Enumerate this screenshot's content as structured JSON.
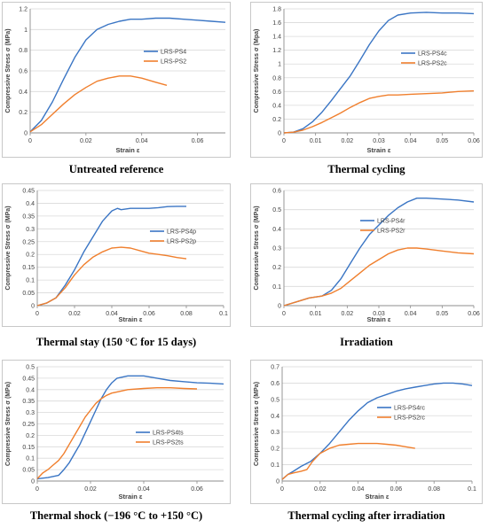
{
  "colors": {
    "blue": "#3a75c4",
    "orange": "#f07f2d",
    "grid": "#d9d9d9",
    "axis": "#8c8c8c",
    "border": "#c8c8c8"
  },
  "captions": [
    "Untreated reference",
    "Thermal cycling",
    "Thermal stay (150 °C for 15 days)",
    "Irradiation",
    "Thermal shock (−196 °C to +150 °C)",
    "Thermal cycling after irradiation"
  ],
  "chart_data": [
    {
      "type": "line",
      "xlabel": "Strain ε",
      "ylabel": "Compressive Stress σ (MPa)",
      "xlim": [
        0,
        0.07
      ],
      "ylim": [
        0,
        1.2
      ],
      "xticks": [
        0,
        0.02,
        0.04,
        0.06
      ],
      "xtick_labels": [
        "0",
        "0.02",
        "0.04",
        "0.06"
      ],
      "yticks": [
        0,
        0.2,
        0.4,
        0.6,
        0.8,
        1,
        1.2
      ],
      "ytick_labels": [
        "0",
        "0.2",
        "0.4",
        "0.6",
        "0.8",
        "1",
        "1.2"
      ],
      "legend": "right",
      "series": [
        {
          "name": "LRS-PS4",
          "color": "blue",
          "x": [
            0,
            0.004,
            0.008,
            0.012,
            0.016,
            0.02,
            0.024,
            0.028,
            0.032,
            0.036,
            0.04,
            0.045,
            0.05,
            0.055,
            0.06,
            0.065,
            0.07
          ],
          "y": [
            0.01,
            0.12,
            0.3,
            0.52,
            0.73,
            0.9,
            1.0,
            1.05,
            1.08,
            1.1,
            1.1,
            1.11,
            1.11,
            1.1,
            1.09,
            1.08,
            1.07
          ]
        },
        {
          "name": "LRS-PS2",
          "color": "orange",
          "x": [
            0,
            0.004,
            0.008,
            0.012,
            0.016,
            0.02,
            0.024,
            0.028,
            0.032,
            0.036,
            0.04,
            0.045,
            0.049
          ],
          "y": [
            0.01,
            0.08,
            0.18,
            0.28,
            0.37,
            0.44,
            0.5,
            0.53,
            0.55,
            0.55,
            0.53,
            0.49,
            0.46
          ]
        }
      ]
    },
    {
      "type": "line",
      "xlabel": "Strain ε",
      "ylabel": "Compressive Stress σ (Mpa)",
      "xlim": [
        0,
        0.06
      ],
      "ylim": [
        0,
        1.8
      ],
      "xticks": [
        0,
        0.01,
        0.02,
        0.03,
        0.04,
        0.05,
        0.06
      ],
      "xtick_labels": [
        "0",
        "0.01",
        "0.02",
        "0.03",
        "0.04",
        "0.05",
        "0.06"
      ],
      "yticks": [
        0,
        0.2,
        0.4,
        0.6,
        0.8,
        1,
        1.2,
        1.4,
        1.6,
        1.8
      ],
      "ytick_labels": [
        "0",
        "0.2",
        "0.4",
        "0.6",
        "0.8",
        "1",
        "1.2",
        "1.4",
        "1.6",
        "1.8"
      ],
      "legend": "right",
      "series": [
        {
          "name": "LRS-PS4c",
          "color": "blue",
          "x": [
            0,
            0.003,
            0.006,
            0.009,
            0.012,
            0.015,
            0.018,
            0.021,
            0.024,
            0.027,
            0.03,
            0.033,
            0.036,
            0.04,
            0.045,
            0.05,
            0.055,
            0.06
          ],
          "y": [
            0,
            0.01,
            0.06,
            0.16,
            0.3,
            0.47,
            0.65,
            0.83,
            1.05,
            1.28,
            1.48,
            1.63,
            1.71,
            1.74,
            1.75,
            1.74,
            1.74,
            1.73
          ]
        },
        {
          "name": "LRS-PS2c",
          "color": "orange",
          "x": [
            0,
            0.003,
            0.006,
            0.009,
            0.012,
            0.015,
            0.018,
            0.021,
            0.024,
            0.027,
            0.03,
            0.033,
            0.036,
            0.04,
            0.045,
            0.05,
            0.055,
            0.06
          ],
          "y": [
            0,
            0.01,
            0.04,
            0.09,
            0.15,
            0.22,
            0.29,
            0.37,
            0.44,
            0.5,
            0.53,
            0.55,
            0.55,
            0.56,
            0.57,
            0.58,
            0.6,
            0.61
          ]
        }
      ]
    },
    {
      "type": "line",
      "xlabel": "Strain ε",
      "ylabel": "Compressive Stress σ (MPa)",
      "xlim": [
        0,
        0.1
      ],
      "ylim": [
        0,
        0.45
      ],
      "xticks": [
        0,
        0.02,
        0.04,
        0.06,
        0.08,
        0.1
      ],
      "xtick_labels": [
        "0",
        "0.02",
        "0.04",
        "0.06",
        "0.08",
        "0.1"
      ],
      "yticks": [
        0,
        0.05,
        0.1,
        0.15,
        0.2,
        0.25,
        0.3,
        0.35,
        0.4,
        0.45
      ],
      "ytick_labels": [
        "0",
        "0.05",
        "0.1",
        "0.15",
        "0.2",
        "0.25",
        "0.3",
        "0.35",
        "0.4",
        "0.45"
      ],
      "legend": "right",
      "series": [
        {
          "name": "LRS-PS4p",
          "color": "blue",
          "x": [
            0,
            0.005,
            0.01,
            0.015,
            0.02,
            0.025,
            0.03,
            0.035,
            0.04,
            0.043,
            0.045,
            0.05,
            0.055,
            0.06,
            0.065,
            0.07,
            0.075,
            0.08
          ],
          "y": [
            0,
            0.01,
            0.03,
            0.08,
            0.14,
            0.21,
            0.27,
            0.33,
            0.37,
            0.38,
            0.375,
            0.38,
            0.38,
            0.38,
            0.383,
            0.387,
            0.388,
            0.388
          ]
        },
        {
          "name": "LRS-PS2p",
          "color": "orange",
          "x": [
            0,
            0.005,
            0.01,
            0.015,
            0.02,
            0.025,
            0.03,
            0.035,
            0.04,
            0.045,
            0.05,
            0.055,
            0.06,
            0.065,
            0.07,
            0.075,
            0.08
          ],
          "y": [
            0,
            0.01,
            0.03,
            0.07,
            0.12,
            0.16,
            0.19,
            0.21,
            0.225,
            0.228,
            0.225,
            0.215,
            0.205,
            0.2,
            0.195,
            0.188,
            0.183
          ]
        }
      ]
    },
    {
      "type": "line",
      "xlabel": "Strain ε",
      "ylabel": "Compressive Stress σ (MPa)",
      "xlim": [
        0,
        0.06
      ],
      "ylim": [
        0,
        0.6
      ],
      "xticks": [
        0,
        0.01,
        0.02,
        0.03,
        0.04,
        0.05,
        0.06
      ],
      "xtick_labels": [
        "0",
        "0.01",
        "0.02",
        "0.03",
        "0.04",
        "0.05",
        "0.06"
      ],
      "yticks": [
        0,
        0.1,
        0.2,
        0.3,
        0.4,
        0.5,
        0.6
      ],
      "ytick_labels": [
        "0",
        "0.1",
        "0.2",
        "0.3",
        "0.4",
        "0.5",
        "0.6"
      ],
      "legend": "upper-center",
      "series": [
        {
          "name": "LRS-PS4r",
          "color": "blue",
          "x": [
            0,
            0.004,
            0.008,
            0.012,
            0.015,
            0.018,
            0.021,
            0.024,
            0.027,
            0.03,
            0.033,
            0.036,
            0.039,
            0.042,
            0.045,
            0.05,
            0.055,
            0.06
          ],
          "y": [
            0,
            0.02,
            0.04,
            0.05,
            0.08,
            0.14,
            0.22,
            0.3,
            0.37,
            0.42,
            0.47,
            0.51,
            0.54,
            0.56,
            0.56,
            0.555,
            0.55,
            0.54
          ]
        },
        {
          "name": "LRS-PS2r",
          "color": "orange",
          "x": [
            0,
            0.004,
            0.008,
            0.012,
            0.015,
            0.018,
            0.021,
            0.024,
            0.027,
            0.03,
            0.033,
            0.036,
            0.039,
            0.042,
            0.045,
            0.05,
            0.055,
            0.06
          ],
          "y": [
            0,
            0.02,
            0.04,
            0.05,
            0.065,
            0.09,
            0.13,
            0.17,
            0.21,
            0.24,
            0.27,
            0.29,
            0.3,
            0.3,
            0.295,
            0.285,
            0.275,
            0.27
          ]
        }
      ]
    },
    {
      "type": "line",
      "xlabel": "Strain ε",
      "ylabel": "Compressive Stress σ (MPa)",
      "xlim": [
        0,
        0.07
      ],
      "ylim": [
        0,
        0.5
      ],
      "xticks": [
        0,
        0.02,
        0.04,
        0.06
      ],
      "xtick_labels": [
        "0",
        "0.02",
        "0.04",
        "0.06"
      ],
      "yticks": [
        0,
        0.05,
        0.1,
        0.15,
        0.2,
        0.25,
        0.3,
        0.35,
        0.4,
        0.45,
        0.5
      ],
      "ytick_labels": [
        "0",
        "0.05",
        "0.1",
        "0.15",
        "0.2",
        "0.25",
        "0.3",
        "0.35",
        "0.4",
        "0.45",
        "0.5"
      ],
      "legend": "right",
      "series": [
        {
          "name": "LRS-PS4ts",
          "color": "blue",
          "x": [
            0,
            0.004,
            0.008,
            0.01,
            0.012,
            0.014,
            0.016,
            0.018,
            0.02,
            0.022,
            0.024,
            0.026,
            0.028,
            0.03,
            0.034,
            0.04,
            0.045,
            0.05,
            0.055,
            0.06,
            0.065,
            0.07
          ],
          "y": [
            0.01,
            0.015,
            0.025,
            0.05,
            0.08,
            0.12,
            0.16,
            0.21,
            0.26,
            0.31,
            0.36,
            0.4,
            0.43,
            0.45,
            0.46,
            0.46,
            0.45,
            0.44,
            0.435,
            0.43,
            0.428,
            0.425
          ]
        },
        {
          "name": "LRS-PS2ts",
          "color": "orange",
          "x": [
            0,
            0.002,
            0.004,
            0.006,
            0.008,
            0.01,
            0.012,
            0.014,
            0.016,
            0.018,
            0.02,
            0.022,
            0.024,
            0.026,
            0.028,
            0.03,
            0.034,
            0.04,
            0.045,
            0.05,
            0.055,
            0.06
          ],
          "y": [
            0.01,
            0.035,
            0.05,
            0.07,
            0.09,
            0.12,
            0.16,
            0.2,
            0.24,
            0.28,
            0.31,
            0.34,
            0.36,
            0.375,
            0.385,
            0.39,
            0.4,
            0.405,
            0.408,
            0.408,
            0.405,
            0.403
          ]
        }
      ]
    },
    {
      "type": "line",
      "xlabel": "Strain ε",
      "ylabel": "Compressive Stress σ (MPa)",
      "xlim": [
        0,
        0.1
      ],
      "ylim": [
        0,
        0.7
      ],
      "xticks": [
        0,
        0.02,
        0.04,
        0.06,
        0.08,
        0.1
      ],
      "xtick_labels": [
        "0",
        "0.02",
        "0.04",
        "0.06",
        "0.08",
        "0.1"
      ],
      "yticks": [
        0,
        0.1,
        0.2,
        0.3,
        0.4,
        0.5,
        0.6,
        0.7
      ],
      "ytick_labels": [
        "0",
        "0.1",
        "0.2",
        "0.3",
        "0.4",
        "0.5",
        "0.6",
        "0.7"
      ],
      "legend": "center-right",
      "series": [
        {
          "name": "LRS-PS4rc",
          "color": "blue",
          "x": [
            0,
            0.003,
            0.006,
            0.01,
            0.015,
            0.02,
            0.025,
            0.03,
            0.035,
            0.04,
            0.045,
            0.05,
            0.055,
            0.06,
            0.065,
            0.07,
            0.075,
            0.08,
            0.085,
            0.09,
            0.095,
            0.1
          ],
          "y": [
            0.01,
            0.04,
            0.06,
            0.09,
            0.12,
            0.17,
            0.23,
            0.3,
            0.37,
            0.43,
            0.48,
            0.51,
            0.53,
            0.55,
            0.565,
            0.575,
            0.585,
            0.595,
            0.6,
            0.6,
            0.595,
            0.585
          ]
        },
        {
          "name": "LRS-PS2rc",
          "color": "orange",
          "x": [
            0,
            0.003,
            0.006,
            0.01,
            0.013,
            0.016,
            0.02,
            0.025,
            0.03,
            0.035,
            0.04,
            0.045,
            0.05,
            0.055,
            0.06,
            0.065,
            0.07
          ],
          "y": [
            0.01,
            0.04,
            0.05,
            0.06,
            0.07,
            0.12,
            0.17,
            0.2,
            0.22,
            0.225,
            0.23,
            0.23,
            0.23,
            0.225,
            0.22,
            0.21,
            0.2
          ]
        }
      ]
    }
  ]
}
